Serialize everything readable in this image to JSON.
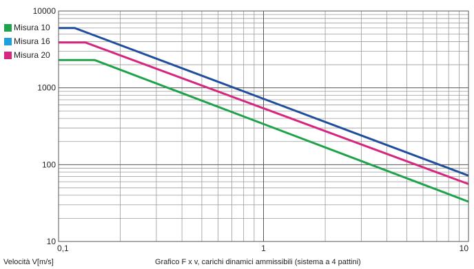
{
  "chart_data": {
    "type": "line",
    "title": "",
    "xlabel": "Velocità V[m/s]",
    "ylabel": "",
    "caption": "Grafico F x v, carichi dinamici ammissibili (sistema a 4 pattini)",
    "xscale": "log",
    "yscale": "log",
    "xlim": [
      0.1,
      10
    ],
    "ylim": [
      10,
      10000
    ],
    "grid": true,
    "legend_position": "top-left",
    "x_tick_labels": [
      "0,1",
      "1",
      "10"
    ],
    "y_tick_labels": [
      "10000",
      "1000",
      "100",
      "10"
    ],
    "x_ticks": [
      0.1,
      1,
      10
    ],
    "y_ticks": [
      10000,
      1000,
      100,
      10
    ],
    "series": [
      {
        "name": "Misura 10",
        "color": "#1fa34a",
        "x": [
          0.1,
          0.15,
          10
        ],
        "y": [
          2300,
          2300,
          33
        ]
      },
      {
        "name": "Misura 16",
        "color": "#1f4e9c",
        "x": [
          0.1,
          0.12,
          10
        ],
        "y": [
          6000,
          6000,
          72
        ]
      },
      {
        "name": "Misura 20",
        "color": "#d6267e",
        "x": [
          0.1,
          0.135,
          10
        ],
        "y": [
          3900,
          3900,
          56
        ]
      }
    ],
    "legend_colors": [
      "#1fa34a",
      "#1ea0dc",
      "#d6267e"
    ]
  }
}
